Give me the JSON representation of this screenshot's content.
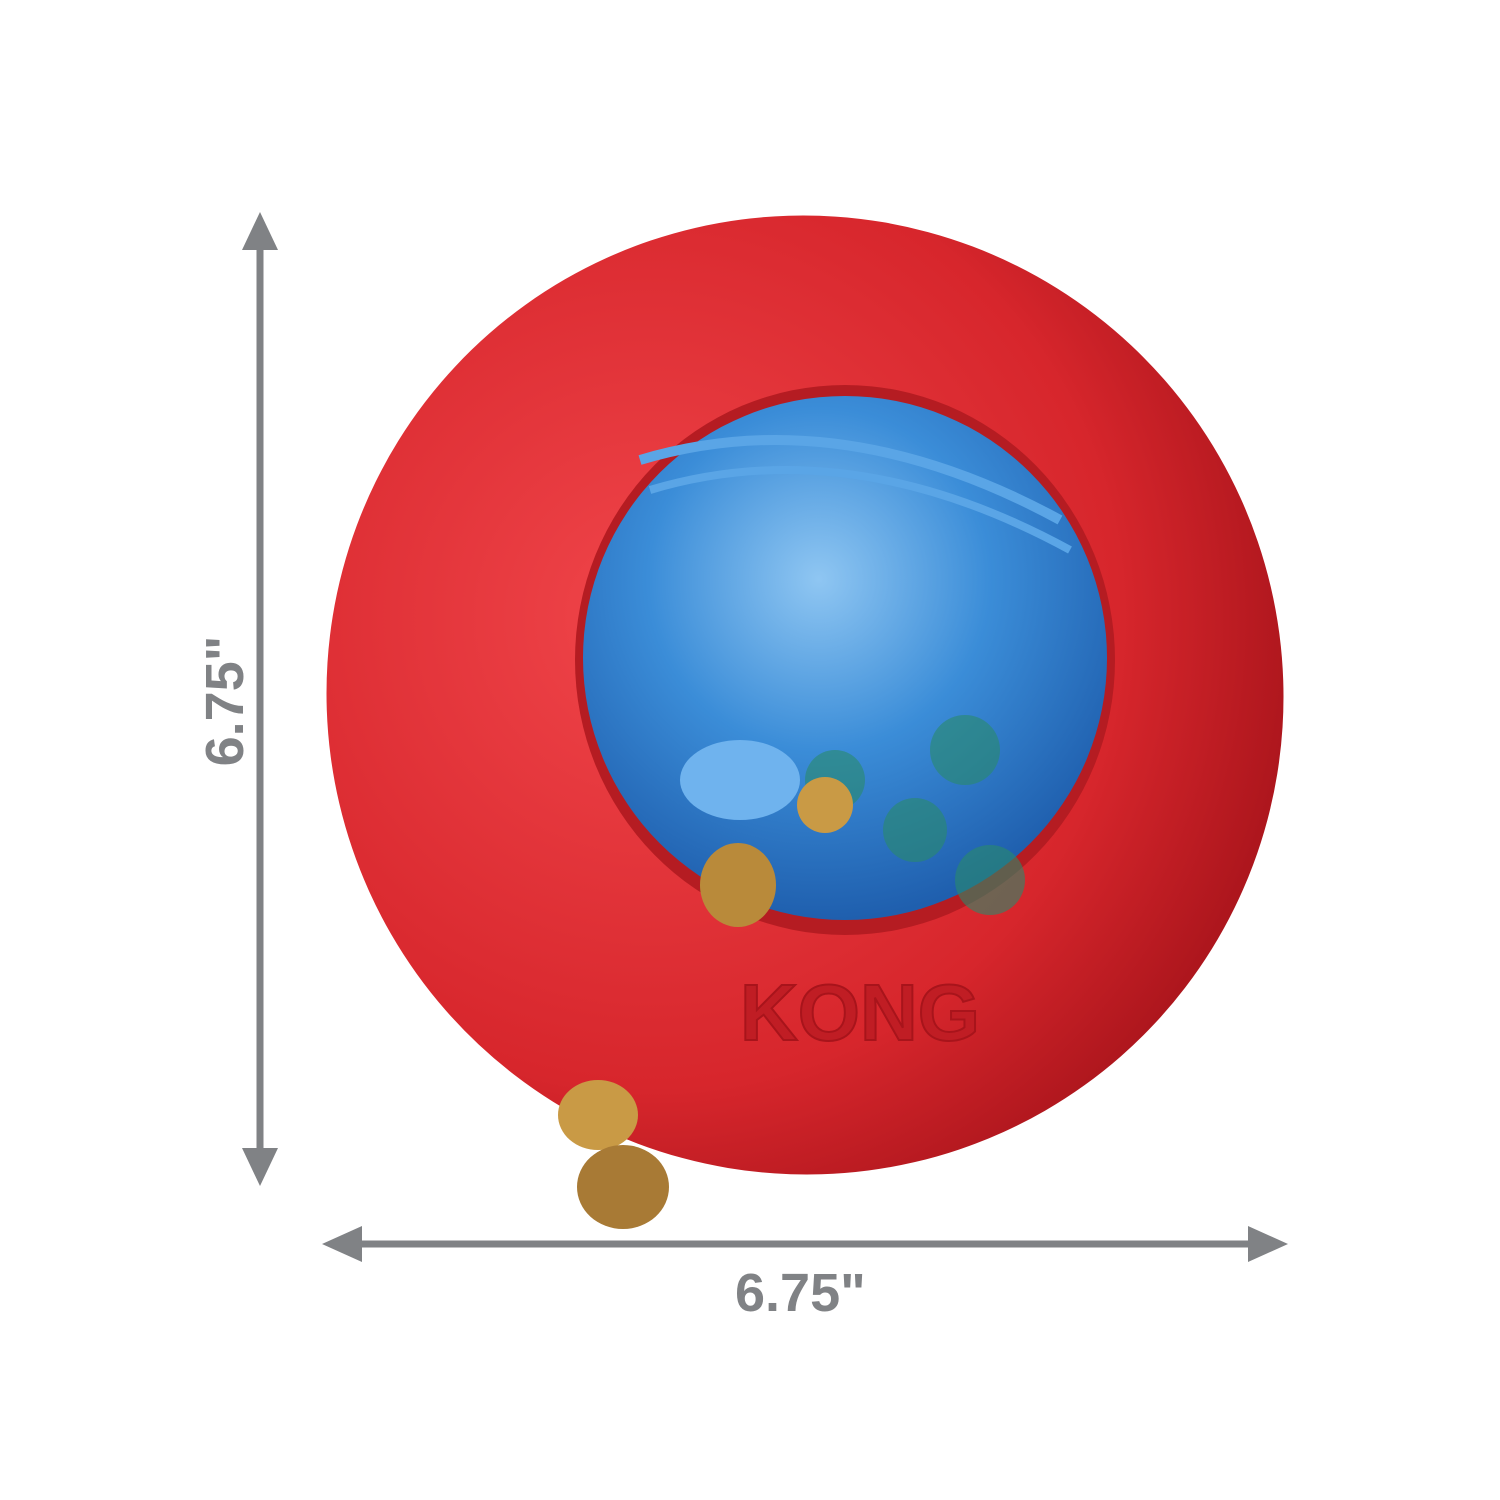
{
  "dimensions": {
    "width_label": "6.75\"",
    "height_label": "6.75\""
  },
  "product": {
    "logo_text": "KONG",
    "ring_color": "#d7262c",
    "ball_color": "#2f7fd0",
    "kibble_color": "#b98a3a"
  },
  "arrow_color": "#808285"
}
